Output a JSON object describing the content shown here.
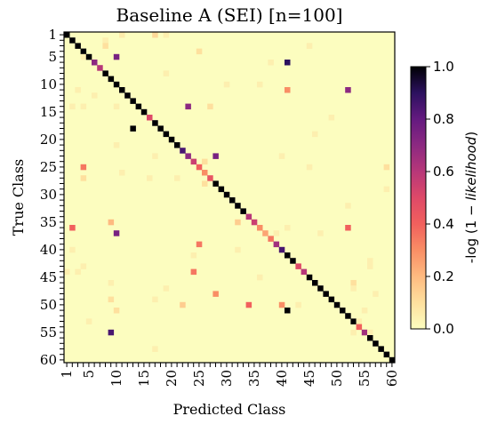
{
  "chart_data": {
    "type": "heatmap",
    "title": "Baseline A (SEI) [n=100]",
    "xlabel": "Predicted Class",
    "ylabel": "True Class",
    "n_classes": 60,
    "x_ticks": [
      1,
      5,
      10,
      15,
      20,
      25,
      30,
      35,
      40,
      45,
      50,
      55,
      60
    ],
    "y_ticks": [
      1,
      5,
      10,
      15,
      20,
      25,
      30,
      35,
      40,
      45,
      50,
      55,
      60
    ],
    "colorbar": {
      "label_prefix": "-log (1 − ",
      "label_italic": "likelihood",
      "label_suffix": ")",
      "range": [
        0.0,
        1.0
      ],
      "ticks": [
        "0.0",
        "0.2",
        "0.4",
        "0.6",
        "0.8",
        "1.0"
      ],
      "colormap": "magma_r"
    },
    "diagonal_value": 1.0,
    "diagonal_overrides": [
      {
        "cls": 6,
        "value": 0.7
      },
      {
        "cls": 7,
        "value": 0.6
      },
      {
        "cls": 16,
        "value": 0.5
      },
      {
        "cls": 22,
        "value": 0.85
      },
      {
        "cls": 23,
        "value": 0.7
      },
      {
        "cls": 24,
        "value": 0.55
      },
      {
        "cls": 25,
        "value": 0.4
      },
      {
        "cls": 26,
        "value": 0.3
      },
      {
        "cls": 27,
        "value": 0.45
      },
      {
        "cls": 34,
        "value": 0.6
      },
      {
        "cls": 35,
        "value": 0.55
      },
      {
        "cls": 36,
        "value": 0.3
      },
      {
        "cls": 37,
        "value": 0.25
      },
      {
        "cls": 38,
        "value": 0.35
      },
      {
        "cls": 39,
        "value": 0.65
      },
      {
        "cls": 40,
        "value": 0.85
      },
      {
        "cls": 43,
        "value": 0.5
      },
      {
        "cls": 44,
        "value": 0.6
      },
      {
        "cls": 54,
        "value": 0.4
      },
      {
        "cls": 55,
        "value": 0.65
      }
    ],
    "off_diagonal": [
      {
        "t": 1,
        "p": 11,
        "v": 0.06
      },
      {
        "t": 1,
        "p": 17,
        "v": 0.12
      },
      {
        "t": 1,
        "p": 19,
        "v": 0.05
      },
      {
        "t": 2,
        "p": 8,
        "v": 0.05
      },
      {
        "t": 3,
        "p": 8,
        "v": 0.1
      },
      {
        "t": 3,
        "p": 45,
        "v": 0.05
      },
      {
        "t": 4,
        "p": 25,
        "v": 0.1
      },
      {
        "t": 5,
        "p": 10,
        "v": 0.75
      },
      {
        "t": 5,
        "p": 4,
        "v": 0.05
      },
      {
        "t": 6,
        "p": 41,
        "v": 0.9
      },
      {
        "t": 6,
        "p": 38,
        "v": 0.05
      },
      {
        "t": 8,
        "p": 19,
        "v": 0.05
      },
      {
        "t": 10,
        "p": 30,
        "v": 0.05
      },
      {
        "t": 10,
        "p": 36,
        "v": 0.05
      },
      {
        "t": 11,
        "p": 41,
        "v": 0.3
      },
      {
        "t": 11,
        "p": 52,
        "v": 0.7
      },
      {
        "t": 11,
        "p": 3,
        "v": 0.05
      },
      {
        "t": 12,
        "p": 6,
        "v": 0.05
      },
      {
        "t": 14,
        "p": 2,
        "v": 0.05
      },
      {
        "t": 14,
        "p": 4,
        "v": 0.05
      },
      {
        "t": 14,
        "p": 23,
        "v": 0.7
      },
      {
        "t": 14,
        "p": 10,
        "v": 0.05
      },
      {
        "t": 14,
        "p": 27,
        "v": 0.1
      },
      {
        "t": 16,
        "p": 49,
        "v": 0.05
      },
      {
        "t": 18,
        "p": 13,
        "v": 1.0
      },
      {
        "t": 19,
        "p": 46,
        "v": 0.05
      },
      {
        "t": 21,
        "p": 10,
        "v": 0.05
      },
      {
        "t": 23,
        "p": 17,
        "v": 0.05
      },
      {
        "t": 23,
        "p": 28,
        "v": 0.75
      },
      {
        "t": 23,
        "p": 40,
        "v": 0.05
      },
      {
        "t": 24,
        "p": 26,
        "v": 0.1
      },
      {
        "t": 25,
        "p": 4,
        "v": 0.35
      },
      {
        "t": 25,
        "p": 45,
        "v": 0.05
      },
      {
        "t": 25,
        "p": 59,
        "v": 0.1
      },
      {
        "t": 26,
        "p": 11,
        "v": 0.05
      },
      {
        "t": 27,
        "p": 4,
        "v": 0.1
      },
      {
        "t": 27,
        "p": 16,
        "v": 0.05
      },
      {
        "t": 27,
        "p": 21,
        "v": 0.05
      },
      {
        "t": 28,
        "p": 26,
        "v": 0.1
      },
      {
        "t": 29,
        "p": 59,
        "v": 0.05
      },
      {
        "t": 32,
        "p": 52,
        "v": 0.05
      },
      {
        "t": 35,
        "p": 9,
        "v": 0.2
      },
      {
        "t": 35,
        "p": 32,
        "v": 0.15
      },
      {
        "t": 36,
        "p": 2,
        "v": 0.4
      },
      {
        "t": 36,
        "p": 52,
        "v": 0.4
      },
      {
        "t": 36,
        "p": 41,
        "v": 0.05
      },
      {
        "t": 37,
        "p": 10,
        "v": 0.75
      },
      {
        "t": 37,
        "p": 39,
        "v": 0.05
      },
      {
        "t": 37,
        "p": 47,
        "v": 0.05
      },
      {
        "t": 39,
        "p": 25,
        "v": 0.35
      },
      {
        "t": 40,
        "p": 2,
        "v": 0.05
      },
      {
        "t": 40,
        "p": 32,
        "v": 0.05
      },
      {
        "t": 41,
        "p": 24,
        "v": 0.05
      },
      {
        "t": 42,
        "p": 56,
        "v": 0.05
      },
      {
        "t": 43,
        "p": 4,
        "v": 0.05
      },
      {
        "t": 43,
        "p": 56,
        "v": 0.05
      },
      {
        "t": 44,
        "p": 1,
        "v": 0.05
      },
      {
        "t": 44,
        "p": 3,
        "v": 0.05
      },
      {
        "t": 44,
        "p": 24,
        "v": 0.35
      },
      {
        "t": 45,
        "p": 36,
        "v": 0.05
      },
      {
        "t": 46,
        "p": 9,
        "v": 0.05
      },
      {
        "t": 46,
        "p": 53,
        "v": 0.1
      },
      {
        "t": 47,
        "p": 19,
        "v": 0.05
      },
      {
        "t": 47,
        "p": 53,
        "v": 0.05
      },
      {
        "t": 48,
        "p": 28,
        "v": 0.3
      },
      {
        "t": 48,
        "p": 57,
        "v": 0.05
      },
      {
        "t": 49,
        "p": 9,
        "v": 0.1
      },
      {
        "t": 49,
        "p": 17,
        "v": 0.05
      },
      {
        "t": 50,
        "p": 22,
        "v": 0.15
      },
      {
        "t": 50,
        "p": 34,
        "v": 0.4
      },
      {
        "t": 50,
        "p": 40,
        "v": 0.3
      },
      {
        "t": 50,
        "p": 43,
        "v": 0.05
      },
      {
        "t": 51,
        "p": 10,
        "v": 0.1
      },
      {
        "t": 51,
        "p": 41,
        "v": 1.0
      },
      {
        "t": 51,
        "p": 55,
        "v": 0.05
      },
      {
        "t": 53,
        "p": 5,
        "v": 0.05
      },
      {
        "t": 53,
        "p": 54,
        "v": 0.05
      },
      {
        "t": 55,
        "p": 9,
        "v": 0.85
      },
      {
        "t": 55,
        "p": 56,
        "v": 0.05
      },
      {
        "t": 55,
        "p": 53,
        "v": 0.05
      },
      {
        "t": 58,
        "p": 17,
        "v": 0.05
      }
    ]
  }
}
